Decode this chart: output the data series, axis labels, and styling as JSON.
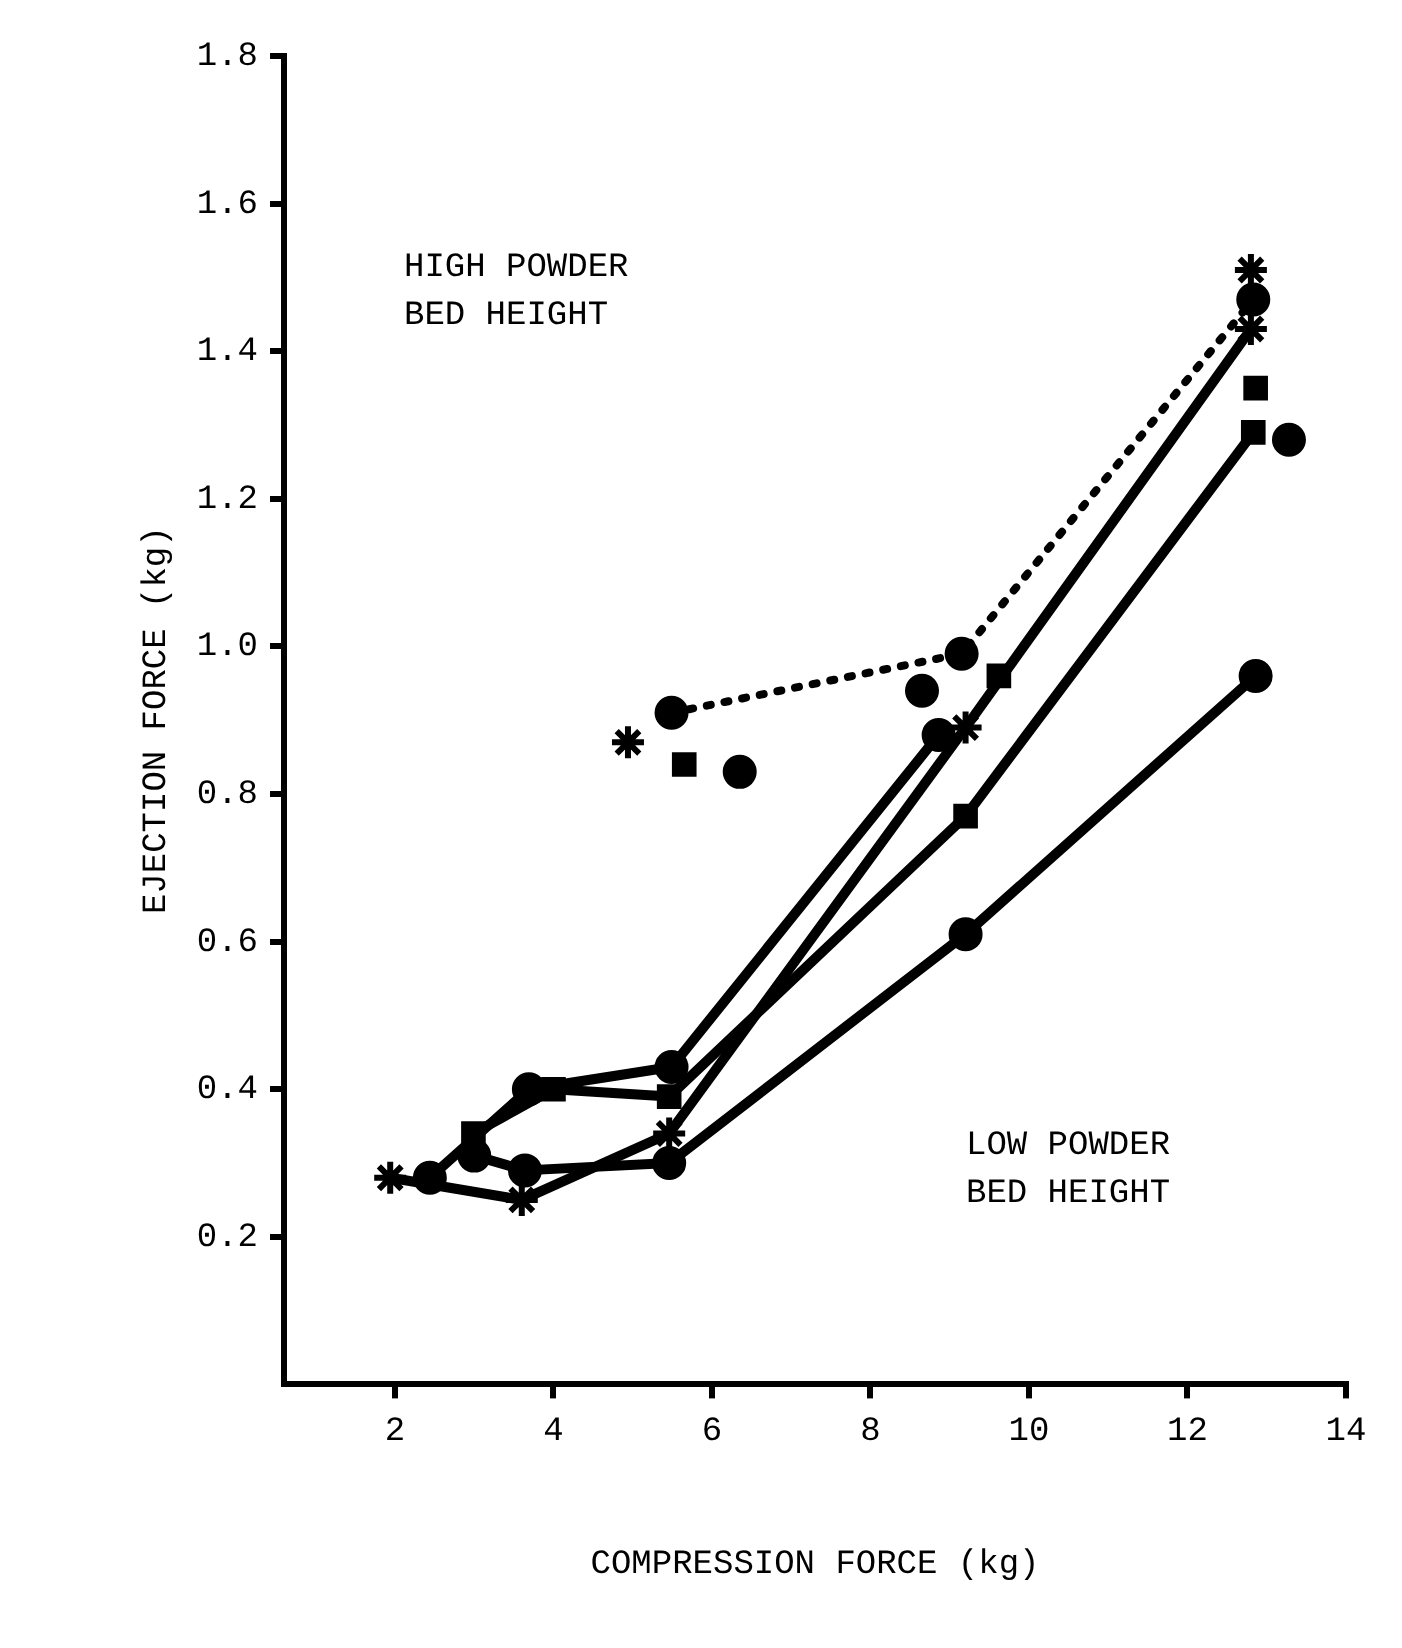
{
  "chart_data": {
    "type": "line",
    "xlabel": "COMPRESSION FORCE (kg)",
    "ylabel": "EJECTION FORCE (kg)",
    "annotations": [
      "HIGH POWDER BED HEIGHT",
      "LOW POWDER BED HEIGHT"
    ],
    "xlim": [
      0.6,
      14
    ],
    "xticks": [
      2,
      4,
      6,
      8,
      10,
      12,
      14
    ],
    "ylim": [
      0,
      1.8
    ],
    "yticks": [
      0.2,
      0.4,
      0.6,
      0.8,
      {
        "value": 1,
        "label": "1.0"
      },
      1.2,
      1.4,
      1.6,
      1.8
    ],
    "grid": false,
    "legend": false,
    "series": [
      {
        "marker": "circle",
        "line_style": "dotted",
        "color": "#000000",
        "x": [
          5.49,
          9.15,
          12.83
        ],
        "values": [
          0.91,
          0.99,
          1.47
        ]
      },
      {
        "type": "scatter",
        "marker": "cross",
        "color": "#000000",
        "x": [
          4.94,
          12.8
        ],
        "values": [
          0.87,
          1.51
        ]
      },
      {
        "type": "scatter",
        "marker": "square",
        "color": "#000000",
        "x": [
          5.65,
          9.62,
          12.86
        ],
        "values": [
          0.84,
          0.96,
          1.35
        ]
      },
      {
        "type": "scatter",
        "marker": "circle",
        "color": "#000000",
        "x": [
          6.35,
          8.65,
          13.28
        ],
        "values": [
          0.83,
          0.94,
          1.28
        ]
      },
      {
        "marker": "circle",
        "line_style": "solid",
        "color": "#000000",
        "x": [
          2.44,
          3.69,
          5.49,
          8.86
        ],
        "values": [
          0.28,
          0.4,
          0.43,
          0.88
        ]
      },
      {
        "marker": "cross",
        "line_style": "solid",
        "color": "#000000",
        "x": [
          1.94,
          3.6,
          5.46,
          9.2,
          12.8
        ],
        "values": [
          0.28,
          0.25,
          0.34,
          0.89,
          1.43
        ]
      },
      {
        "marker": "square",
        "line_style": "solid",
        "color": "#000000",
        "x": [
          2.99,
          4.0,
          5.46,
          9.2,
          12.83
        ],
        "values": [
          0.34,
          0.4,
          0.39,
          0.77,
          1.29
        ]
      },
      {
        "marker": "circle",
        "line_style": "solid",
        "color": "#000000",
        "x": [
          3.0,
          3.64,
          5.46,
          9.2,
          12.86
        ],
        "values": [
          0.31,
          0.29,
          0.3,
          0.61,
          0.96
        ]
      }
    ]
  }
}
